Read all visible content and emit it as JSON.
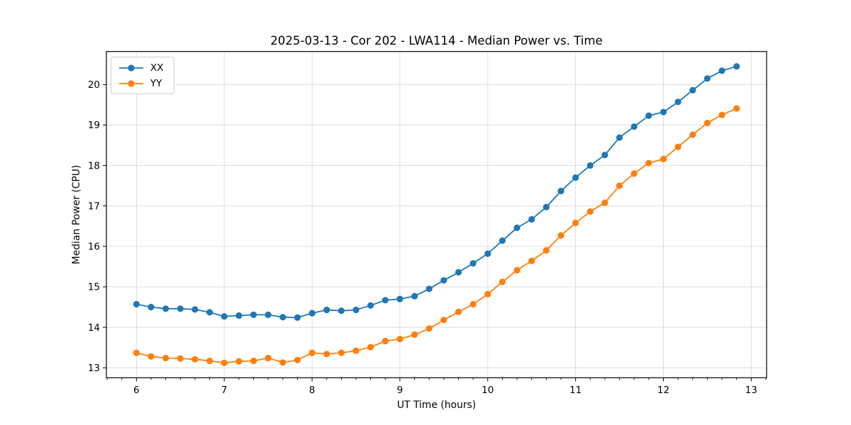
{
  "figure": {
    "title": "2025-03-13 - Cor 202 - LWA114 - Median Power vs. Time"
  },
  "chart_data": {
    "type": "line",
    "title": "2025-03-13 - Cor 202 - LWA114 - Median Power vs. Time",
    "xlabel": "UT Time (hours)",
    "ylabel": "Median Power (CPU)",
    "legend_position": "upper left",
    "grid": true,
    "marker": "circle",
    "xlim": [
      5.658,
      13.175
    ],
    "ylim": [
      12.753,
      20.817
    ],
    "x_ticks": [
      6,
      7,
      8,
      9,
      10,
      11,
      12,
      13
    ],
    "y_ticks": [
      13,
      14,
      15,
      16,
      17,
      18,
      19,
      20
    ],
    "x_minor_tick_step": 0.166667,
    "x": [
      6,
      6.1667,
      6.3333,
      6.5,
      6.6667,
      6.8333,
      7,
      7.1667,
      7.3333,
      7.5,
      7.6667,
      7.8333,
      8,
      8.1667,
      8.3333,
      8.5,
      8.6667,
      8.8333,
      9,
      9.1667,
      9.3333,
      9.5,
      9.6667,
      9.8333,
      10,
      10.1667,
      10.3333,
      10.5,
      10.6667,
      10.8333,
      11,
      11.1667,
      11.3333,
      11.5,
      11.6667,
      11.8333,
      12,
      12.1667,
      12.3333,
      12.5,
      12.6667,
      12.8333
    ],
    "series": [
      {
        "name": "XX",
        "color": "#1f77b4",
        "values": [
          14.57,
          14.5,
          14.46,
          14.46,
          14.44,
          14.37,
          14.27,
          14.29,
          14.31,
          14.31,
          14.25,
          14.24,
          14.35,
          14.43,
          14.41,
          14.43,
          14.54,
          14.67,
          14.7,
          14.77,
          14.95,
          15.16,
          15.36,
          15.58,
          15.82,
          16.14,
          16.46,
          16.67,
          16.97,
          17.37,
          17.7,
          18.0,
          18.26,
          18.69,
          18.96,
          19.23,
          19.32,
          19.57,
          19.86,
          20.15,
          20.34,
          20.45
        ]
      },
      {
        "name": "YY",
        "color": "#ff7f0e",
        "values": [
          13.37,
          13.28,
          13.24,
          13.23,
          13.21,
          13.17,
          13.12,
          13.16,
          13.17,
          13.24,
          13.13,
          13.19,
          13.37,
          13.34,
          13.37,
          13.42,
          13.51,
          13.66,
          13.71,
          13.82,
          13.97,
          14.18,
          14.38,
          14.57,
          14.82,
          15.12,
          15.41,
          15.64,
          15.9,
          16.27,
          16.58,
          16.86,
          17.08,
          17.5,
          17.8,
          18.06,
          18.16,
          18.46,
          18.76,
          19.05,
          19.25,
          19.41
        ]
      }
    ],
    "style": {
      "grid_color": "#dcdcdc",
      "spine_color": "#000000",
      "background": "#ffffff",
      "line_width": 1.8,
      "marker_radius": 4.6
    }
  }
}
